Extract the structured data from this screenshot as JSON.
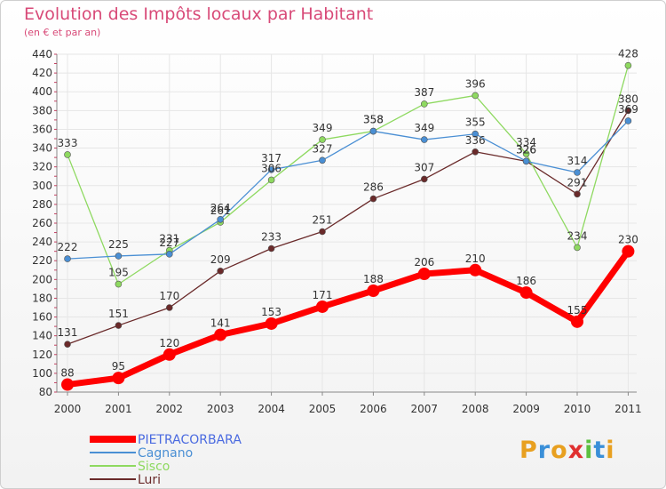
{
  "chart_data": {
    "type": "line",
    "title": "Evolution des Impôts locaux par Habitant",
    "subtitle": "(en € et par an)",
    "x": [
      "2000",
      "2001",
      "2002",
      "2003",
      "2004",
      "2005",
      "2006",
      "2007",
      "2008",
      "2009",
      "2010",
      "2011"
    ],
    "ylim": [
      80,
      440
    ],
    "yticks": [
      80,
      100,
      120,
      140,
      160,
      180,
      200,
      220,
      240,
      260,
      280,
      300,
      320,
      340,
      360,
      380,
      400,
      420,
      440
    ],
    "grid": true,
    "legend_position": "bottom-left",
    "series": [
      {
        "name": "PIETRACORBARA",
        "color": "#ff0000",
        "values": [
          88,
          95,
          120,
          141,
          153,
          171,
          188,
          206,
          210,
          186,
          155,
          230
        ]
      },
      {
        "name": "Cagnano",
        "color": "#4a8fd4",
        "values": [
          222,
          225,
          227,
          264,
          317,
          327,
          358,
          349,
          355,
          326,
          314,
          369
        ]
      },
      {
        "name": "Sisco",
        "color": "#8ed960",
        "values": [
          333,
          195,
          231,
          261,
          306,
          349,
          358,
          387,
          396,
          334,
          234,
          428
        ]
      },
      {
        "name": "Luri",
        "color": "#6a2a2a",
        "values": [
          131,
          151,
          170,
          209,
          233,
          251,
          286,
          307,
          336,
          326,
          291,
          380
        ]
      }
    ]
  },
  "branding": {
    "logo_text": "Proxiti",
    "logo_colors": [
      "#e8a020",
      "#3a8fd8",
      "#e8a020",
      "#e03030",
      "#5cc040",
      "#3a8fd8",
      "#e8a020"
    ]
  }
}
